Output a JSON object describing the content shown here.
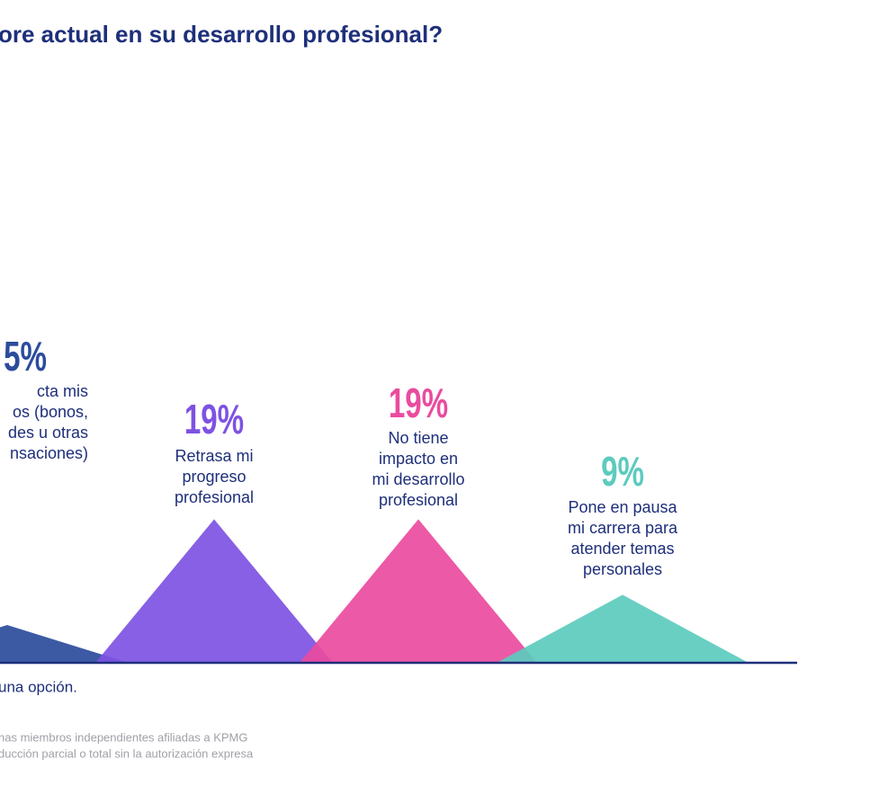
{
  "chart_data": {
    "type": "triangle",
    "title": "ore actual en su desarrollo profesional?",
    "categories": [
      [
        "cta mis",
        "os (bonos,",
        "des u otras",
        "nsaciones)"
      ],
      [
        "Retrasa mi",
        "progreso",
        "profesional"
      ],
      [
        "No tiene",
        "impacto en",
        "mi desarrollo",
        "profesional"
      ],
      [
        "Pone en pausa",
        "mi carrera para",
        "atender temas",
        "personales"
      ]
    ],
    "values": [
      5,
      19,
      19,
      9
    ],
    "value_labels": [
      "5%",
      "19%",
      "19%",
      "9%"
    ],
    "colors": [
      "#2b4c9c",
      "#7d52e3",
      "#ea4b9f",
      "#5ccbbe"
    ],
    "ylim": [
      0,
      20
    ],
    "note": "una opción.",
    "source": [
      "nas miembros independientes afiliadas a KPMG",
      "ducción parcial o total sin la autorización expresa"
    ]
  }
}
